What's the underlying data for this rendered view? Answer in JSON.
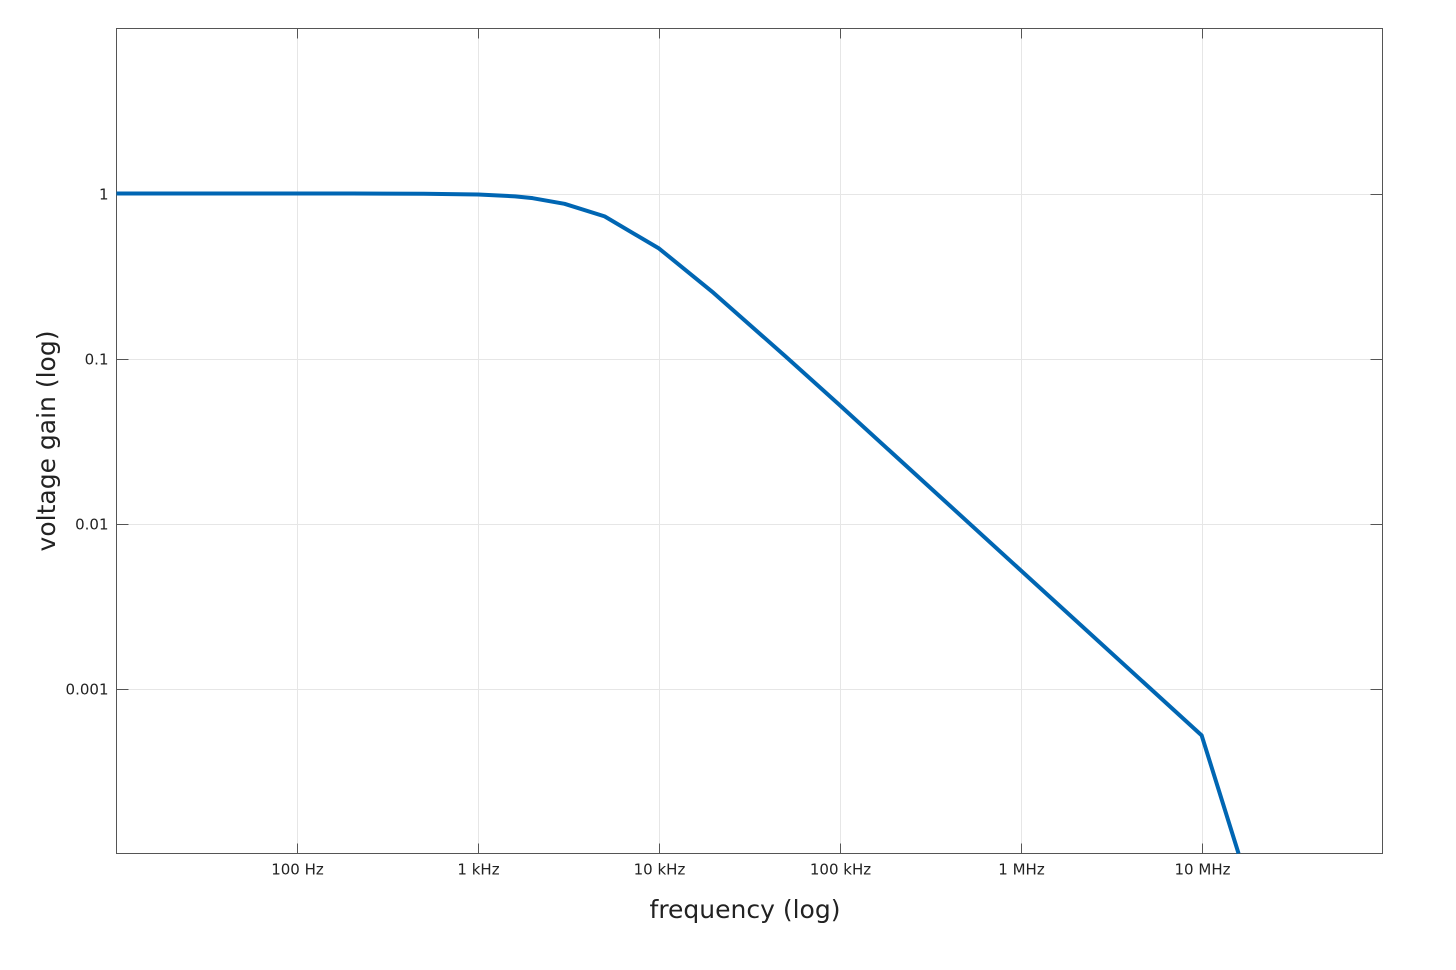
{
  "chart_data": {
    "type": "line",
    "xlabel": "frequency (log)",
    "ylabel": "voltage gain (log)",
    "xscale": "log",
    "yscale": "log",
    "xlim": [
      10,
      100000000
    ],
    "ylim": [
      0.0001,
      10
    ],
    "grid": true,
    "x_ticks": [
      {
        "value": 100,
        "label": "100 Hz"
      },
      {
        "value": 1000,
        "label": "1 kHz"
      },
      {
        "value": 10000,
        "label": "10 kHz"
      },
      {
        "value": 100000,
        "label": "100 kHz"
      },
      {
        "value": 1000000,
        "label": "1 MHz"
      },
      {
        "value": 10000000,
        "label": "10 MHz"
      }
    ],
    "y_ticks": [
      {
        "value": 1,
        "label": "1"
      },
      {
        "value": 0.1,
        "label": "0.1"
      },
      {
        "value": 0.01,
        "label": "0.01"
      },
      {
        "value": 0.001,
        "label": "0.001"
      }
    ],
    "series": [
      {
        "color": "#0066b3",
        "x": [
          10,
          50,
          100,
          200,
          500,
          1000,
          1600,
          2000,
          3000,
          5000,
          10000,
          20000,
          50000,
          100000,
          1000000,
          10000000,
          16000000
        ],
        "y": [
          1,
          1,
          0.9999,
          0.9995,
          0.997,
          0.986,
          0.961,
          0.937,
          0.866,
          0.727,
          0.464,
          0.25,
          0.103,
          0.052,
          0.0052,
          0.00052,
          0.0001
        ]
      }
    ]
  }
}
